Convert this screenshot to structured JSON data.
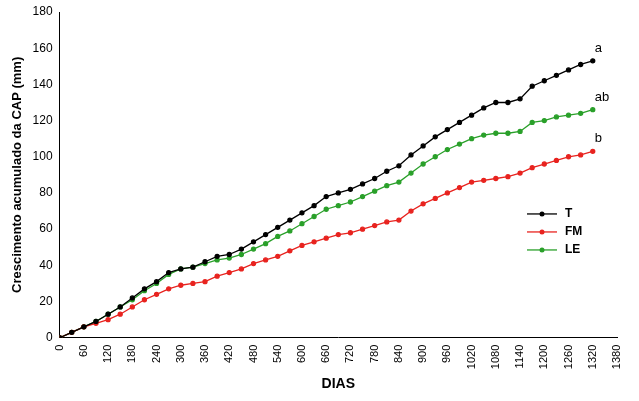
{
  "chart_data": {
    "type": "line",
    "x_label": "DIAS",
    "y_label": "Crescimento acumulado da CAP (mm)",
    "x": [
      0,
      30,
      60,
      90,
      120,
      150,
      180,
      210,
      240,
      270,
      300,
      330,
      360,
      390,
      420,
      450,
      480,
      510,
      540,
      570,
      600,
      630,
      660,
      690,
      720,
      750,
      780,
      810,
      840,
      870,
      900,
      930,
      960,
      990,
      1020,
      1050,
      1080,
      1110,
      1140,
      1170,
      1200,
      1230,
      1260,
      1290,
      1320
    ],
    "series": [
      {
        "name": "T",
        "color": "#000000",
        "marker": "circle",
        "values": [
          0,
          3,
          6,
          9,
          13,
          17,
          22,
          27,
          31,
          36,
          38,
          39,
          42,
          45,
          46,
          49,
          53,
          57,
          61,
          65,
          69,
          73,
          78,
          80,
          82,
          85,
          88,
          92,
          95,
          101,
          106,
          111,
          115,
          119,
          123,
          127,
          130,
          130,
          132,
          139,
          142,
          145,
          148,
          151,
          153
        ]
      },
      {
        "name": "FM",
        "color": "#e8231f",
        "marker": "circle",
        "values": [
          0,
          3,
          6,
          8,
          10,
          13,
          17,
          21,
          24,
          27,
          29,
          30,
          31,
          34,
          36,
          38,
          41,
          43,
          45,
          48,
          51,
          53,
          55,
          57,
          58,
          60,
          62,
          64,
          65,
          70,
          74,
          77,
          80,
          83,
          86,
          87,
          88,
          89,
          91,
          94,
          96,
          98,
          100,
          101,
          103
        ]
      },
      {
        "name": "LE",
        "color": "#2aa02a",
        "marker": "circle",
        "values": [
          0,
          3,
          6,
          9,
          13,
          17,
          21,
          26,
          30,
          35,
          38,
          39,
          41,
          43,
          44,
          46,
          49,
          52,
          56,
          59,
          63,
          67,
          71,
          73,
          75,
          78,
          81,
          84,
          86,
          91,
          96,
          100,
          104,
          107,
          110,
          112,
          113,
          113,
          114,
          119,
          120,
          122,
          123,
          124,
          126
        ]
      }
    ],
    "annotations": [
      {
        "text": "a",
        "x": 1325,
        "y": 160
      },
      {
        "text": "ab",
        "x": 1325,
        "y": 133
      },
      {
        "text": "b",
        "x": 1325,
        "y": 110
      }
    ],
    "xlim": [
      0,
      1380
    ],
    "xticks": [
      0,
      60,
      120,
      180,
      240,
      300,
      360,
      420,
      480,
      540,
      600,
      660,
      720,
      780,
      840,
      900,
      960,
      1020,
      1080,
      1140,
      1200,
      1260,
      1320,
      1380
    ],
    "ylim": [
      0,
      180
    ],
    "yticks": [
      0,
      20,
      40,
      60,
      80,
      100,
      120,
      140,
      160,
      180
    ],
    "grid": false,
    "legend": "right"
  }
}
